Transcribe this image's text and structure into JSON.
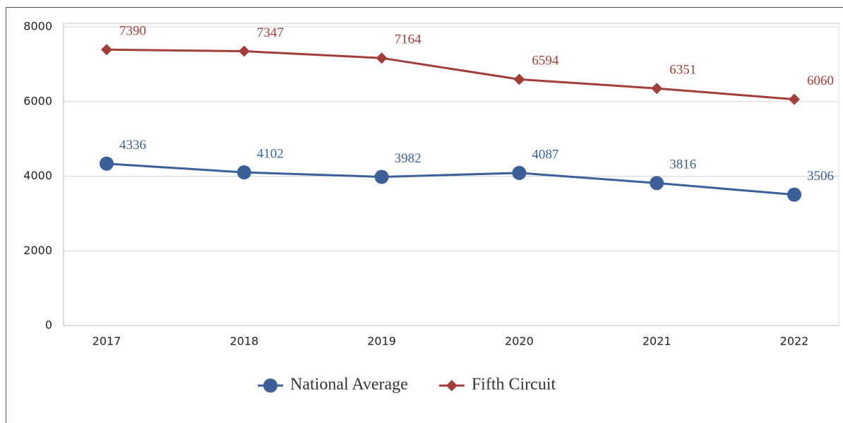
{
  "chart_data": {
    "type": "line",
    "categories": [
      "2017",
      "2018",
      "2019",
      "2020",
      "2021",
      "2022"
    ],
    "series": [
      {
        "name": "National Average",
        "color": "#3b5f99",
        "marker": "circle",
        "values": [
          4336,
          4102,
          3982,
          4087,
          3816,
          3506
        ]
      },
      {
        "name": "Fifth Circuit",
        "color": "#a33d39",
        "marker": "diamond",
        "values": [
          7390,
          7347,
          7164,
          6594,
          6351,
          6060
        ]
      }
    ],
    "ylim": [
      0,
      8000
    ],
    "yticks": [
      0,
      2000,
      4000,
      6000,
      8000
    ],
    "grid": true,
    "legend": "bottom"
  }
}
